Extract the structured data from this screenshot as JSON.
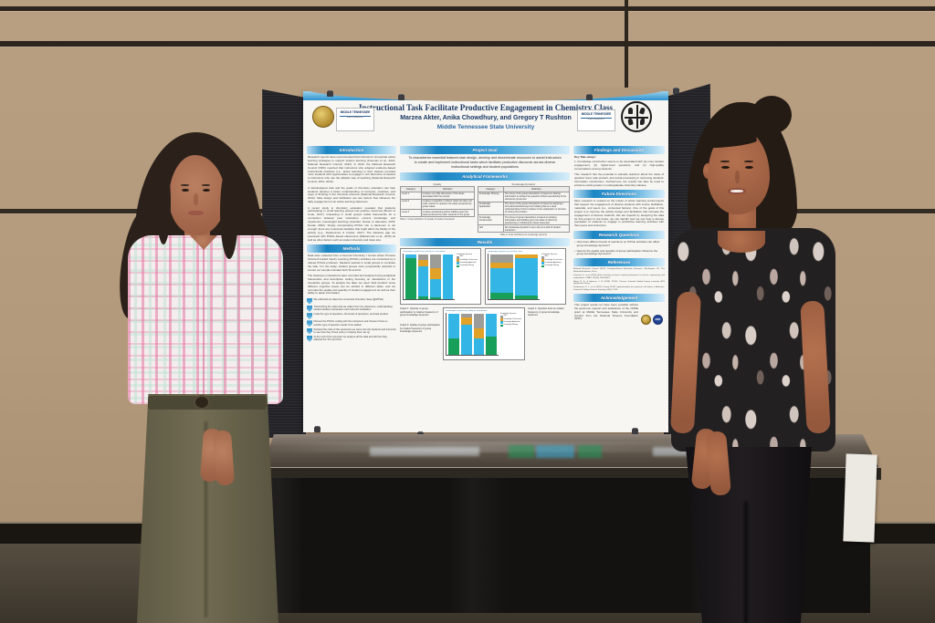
{
  "colors": {
    "wall": "#b49a7c",
    "poster_blue": "#1b85c3",
    "title_navy": "#1c3a66",
    "chart_green": "#18a05a",
    "chart_blue": "#33b5e5",
    "chart_orange": "#e2a127",
    "chart_gray": "#9c9c99"
  },
  "poster": {
    "header": {
      "title": "Instructional Task Facilitate Productive Engagement in Chemistry Class",
      "authors": "Marzea Akter, Anika Chowdhury, and Gregory T Rushton",
      "affiliation": "Middle Tennessee State University",
      "wordmark_line1": "MIDDLE TENNESSEE",
      "wordmark_line2": "STATE UNIVERSITY"
    },
    "introduction": {
      "heading": "Introduction",
      "paragraphs": [
        "Research reports have recommended that instructors incorporate active learning strategies to support student learning (Freeman et al., 2013; National Research Council, 2012). In 2013, the National Research Council (NRC) reported that instructors who adopted evidence-based instructional practices (i.e., active learning) in their classes provided more students with opportunities to engage in rich discourse compared to instructors who use the didactic way of teaching (National Research Council, 2012, 2013).",
        "A well-designed task and the goals of chemistry education can help students develop a better understanding of concepts, practices, and ways of thinking in the chemical sciences (National Research Council, 2012). Task design and facilitation are two factors that influence the daily engagement of an active learning classroom.",
        "A recent study in chemistry education revealed that students participating in small learning groups has positive outcomes (Brown & Cook, 2017). Interacting in small groups builds frameworks for a connection between peer interaction, content knowledge, and experience (meaningful learning) (Ausubel, Novak, & Hanesian, 1978; Novak, 2002). Simply incorporating POGIL into a classroom is not enough; there are contextual variables that might affect the fidelity of the activity (e.g., Daubenmire & Frazier, 2017). The literature gap we examined with POGIL-based classrooms (Daubenmire et al., 2015) as well as other factors such as student diversity and class size."
      ]
    },
    "methods": {
      "heading": "Methods",
      "paragraphs": [
        "Data were collected from a General Chemistry I course where Process Oriented Guided Inquiry Learning (POGIL) activities are conducted by a trained POGIL professor. Students worked in small groups to complete the task. For the study, student groups were purposefully selected to ensure our sample included both TA and FA.",
        "The classroom interactions were recorded and analyzed using analytical frameworks and descriptive coding focusing on interactions in the interactive groups. To analyze the data, we used \"task product\" since different cognitive levels can be elicited in different tasks, and we recorded the quality and quantity of student engagement as well as their ability to attain information."
      ],
      "steps": [
        "We collected our data from a General chemistry class (@MTSU)",
        "Transcribing the video that we collect from the classroom; understanding student-student interactions and instructor facilitation",
        "Code the type of questions, the levels of questions, and task product",
        "Discuss the POGIL coding with the instructors and choose if there is another type of question needs to be added",
        "Scripted the code of the sentences we came into the students and instructor to see how they chose policy in helping them set up",
        "At the end of the semester we analyze all the data and tell how they affected the TA's and FA's"
      ]
    },
    "project_goal": {
      "heading": "Project Goal",
      "text": "To characterize essential features task design, develop and disseminate resources to assist instructors to create and implement instructional tasks which facilitate productive discourse across diverse instructional settings and student populations"
    },
    "analytical_frameworks": {
      "heading": "Analytical Frameworks",
      "quality_table": {
        "title": "Quality",
        "headers": [
          "Category",
          "Definition"
        ],
        "rows": [
          [
            "Level 1",
            "Involves very little discussion of the ideas associated with the prompt"
          ],
          [
            "Level 2",
            "Involves recognition of others' ideas but does not build, interact or question the ideas presented by group mates"
          ],
          [
            "Level 3",
            "Involves questioning and/or building upon the ideas presented by other students in the group"
          ]
        ],
        "caption": "Table 1: Code definitions for quality of student interaction"
      },
      "knowledge_table": {
        "title": "Knowledge Dynamic",
        "headers": [
          "Category",
          "Definition"
        ],
        "rows": [
          [
            "Knowledge Sharing",
            "The focus of the group interactions is based on sharing information to answer the question without questioning of the utterances presented"
          ],
          [
            "Knowledge Application",
            "The focus of the group interactions is based on applying a formula/method/concept and relating that to a clear understanding of how it relates to the explanation or process of solving the problem"
          ],
          [
            "Knowledge Construction",
            "The focus of group interactions is based on sharing information and building upon the ideas of others by questioning or critiquing the ideas presented"
          ],
          [
            "N/A",
            "No knowledge dynamic is seen due to a lack of student interaction"
          ]
        ],
        "caption": "Table 2: Code definitions for knowledge dynamic"
      }
    },
    "results": {
      "heading": "Results"
    },
    "findings": {
      "heading": "Findings and Discussion",
      "takeaway_label": "Key Take-aways:",
      "takeaways": [
        "1.  Knowledge construction seems to be associated with (a) more student engagement, (b) higher-level questions, and (c) high-quality conversations among students."
      ],
      "paragraph": "This research has the potential to educate teachers about the value of question level, task product, and social processing in improving students' information construction. Furthermore, the results can also be used to enhance existing tasks in undergraduate chemistry classes."
    },
    "future_directions": {
      "heading": "Future Directions",
      "text": "More research is needed on the nature of active learning environments that support the engagement of diverse students with course facilitation, materials, and peers (i.e., contextual factors). One of the goals of this project is to improve the activity design and facilitation that increase the engagement of diverse students. We are hopeful by analyzing the data for this project in the future, we can identify how we can help a diverse population of students to engage in productive learning activities with their peers and instructors."
    },
    "research_questions": {
      "heading": "Research Questions",
      "items": [
        "How does different levels of questions on POGIL activities can effect group knowledge dynamic?",
        "How do the quality and quantity of group participation influence the group knowledge dynamics?"
      ]
    },
    "references": {
      "heading": "References",
      "entries": [
        "National Research Council (2012). Discipline-Based Education Research. Washington, DC: The National Academies Press.",
        "Freeman, S., et al. (2014). Active learning increases student performance in science, engineering, and mathematics. PNAS, 111(23), 8410-8415.",
        "Moog, R. S., & Spencer, J. N. (2008). POGIL: Process Oriented Guided Inquiry Learning. ACS Symposium Series.",
        "Daubenmire, P. L., et al. (2015). During POGIL implementation the professor still makes a difference. Journal of College Science Teaching, 44(5), 72-81."
      ]
    },
    "acknowledgement": {
      "heading": "Acknowledgement",
      "text": "This project would not have been possible without the generous support and assistance of the CMSE grant at Middle Tennessee State University and support from the National Science Foundation (NSF).",
      "nsf_label": "NSF"
    }
  },
  "chart_data": [
    {
      "type": "bar",
      "stacked": true,
      "panel_label": "Knowledge Dynamic by Quantity of Participation",
      "caption": "Graph 1: Quantity of group participation by relative frequency of group knowledge dynamics",
      "categories": [
        "1",
        "2",
        "3",
        "4"
      ],
      "ylim": [
        0,
        100
      ],
      "legend_title": "Knowledge Dynamic",
      "series": [
        {
          "name": "Knowledge Sharing",
          "color": "#18a05a",
          "values": [
            92,
            6,
            5,
            0
          ]
        },
        {
          "name": "Knowledge Application",
          "color": "#33b5e5",
          "values": [
            8,
            69,
            41,
            100
          ]
        },
        {
          "name": "Knowledge Construction",
          "color": "#e2a127",
          "values": [
            0,
            13,
            25,
            0
          ]
        },
        {
          "name": "N/A",
          "color": "#9c9c99",
          "values": [
            0,
            12,
            29,
            0
          ]
        }
      ]
    },
    {
      "type": "bar",
      "stacked": true,
      "panel_label": "Knowledge Dynamic by Question Level",
      "caption": "Graph 2: Question level by relative frequency of group knowledge dynamics",
      "categories": [
        "1",
        "2"
      ],
      "ylim": [
        0,
        100
      ],
      "legend_title": "Knowledge Dynamic",
      "series": [
        {
          "name": "Knowledge Sharing",
          "color": "#18a05a",
          "values": [
            15,
            10
          ]
        },
        {
          "name": "Knowledge Application",
          "color": "#33b5e5",
          "values": [
            55,
            82
          ]
        },
        {
          "name": "Knowledge Construction",
          "color": "#e2a127",
          "values": [
            12,
            8
          ]
        },
        {
          "name": "N/A",
          "color": "#9c9c99",
          "values": [
            18,
            0
          ]
        }
      ]
    },
    {
      "type": "bar",
      "stacked": true,
      "panel_label": "Knowledge Dynamic by Quality of Participation",
      "caption": "Graph 3: Quality of group participation by relative frequency of group knowledge dynamics",
      "categories": [
        "1",
        "2",
        "3",
        "4"
      ],
      "ylim": [
        0,
        100
      ],
      "legend_title": "Knowledge Dynamic",
      "series": [
        {
          "name": "Knowledge Sharing",
          "color": "#18a05a",
          "values": [
            42,
            0,
            0,
            46
          ]
        },
        {
          "name": "Knowledge Application",
          "color": "#33b5e5",
          "values": [
            58,
            74,
            40,
            54
          ]
        },
        {
          "name": "Knowledge Construction",
          "color": "#e2a127",
          "values": [
            0,
            18,
            25,
            0
          ]
        },
        {
          "name": "N/A",
          "color": "#9c9c99",
          "values": [
            0,
            8,
            35,
            0
          ]
        }
      ]
    }
  ]
}
